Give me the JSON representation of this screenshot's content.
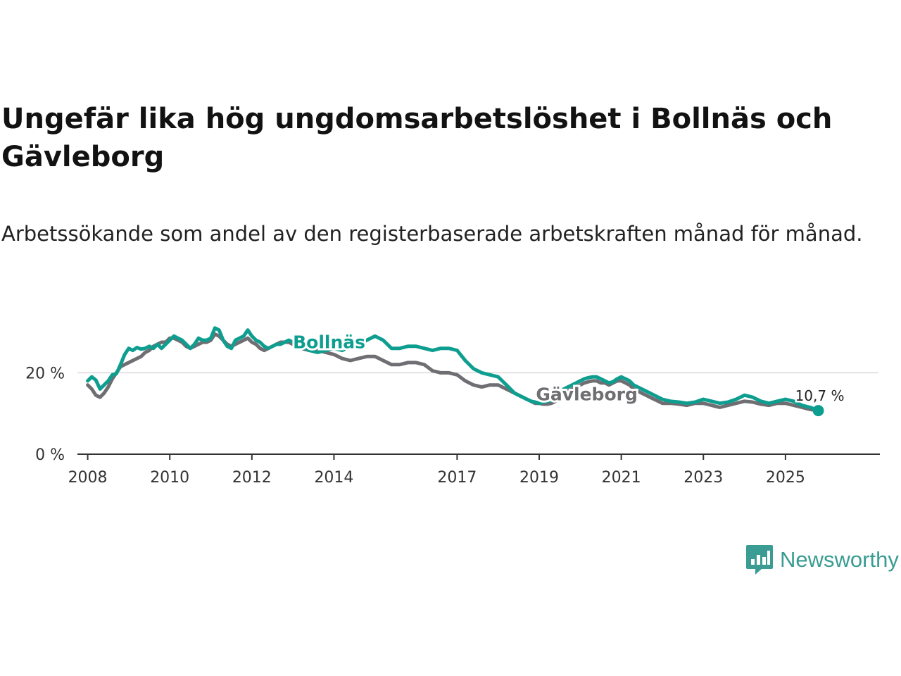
{
  "title": "Ungefär lika hög ungdomsarbetslöshet i Bollnäs och Gävleborg",
  "subtitle": "Arbetssökande som andel av den registerbaserade arbetskraften månad för månad.",
  "brand": {
    "name": "Newsworthy",
    "color": "#3a9c92"
  },
  "chart_data": {
    "type": "line",
    "title": "Ungefär lika hög ungdomsarbetslöshet i Bollnäs och Gävleborg",
    "xlabel": "",
    "ylabel": "",
    "xlim": [
      2007.75,
      2027.3
    ],
    "ylim": [
      0,
      32
    ],
    "x_ticks": [
      2008,
      2010,
      2012,
      2014,
      2017,
      2019,
      2021,
      2023,
      2025
    ],
    "y_ticks": [
      {
        "value": 0,
        "label": "0 %"
      },
      {
        "value": 20,
        "label": "20 %"
      }
    ],
    "grid": "horizontal",
    "end_label": "10,7 %",
    "series": [
      {
        "name": "Bollnäs",
        "color": "#0e9e8f",
        "x": [
          2008.0,
          2008.1,
          2008.2,
          2008.3,
          2008.4,
          2008.5,
          2008.6,
          2008.7,
          2008.8,
          2008.9,
          2009.0,
          2009.1,
          2009.2,
          2009.3,
          2009.4,
          2009.5,
          2009.6,
          2009.7,
          2009.8,
          2009.9,
          2010.0,
          2010.1,
          2010.2,
          2010.3,
          2010.4,
          2010.5,
          2010.6,
          2010.7,
          2010.8,
          2010.9,
          2011.0,
          2011.1,
          2011.2,
          2011.3,
          2011.4,
          2011.5,
          2011.6,
          2011.7,
          2011.8,
          2011.9,
          2012.0,
          2012.1,
          2012.2,
          2012.3,
          2012.4,
          2012.5,
          2012.6,
          2012.7,
          2012.8,
          2012.9,
          2013.0,
          2013.2,
          2013.4,
          2013.6,
          2013.8,
          2014.0,
          2014.2,
          2014.4,
          2014.6,
          2014.8,
          2015.0,
          2015.2,
          2015.4,
          2015.6,
          2015.8,
          2016.0,
          2016.2,
          2016.4,
          2016.6,
          2016.8,
          2017.0,
          2017.2,
          2017.4,
          2017.6,
          2017.8,
          2018.0,
          2018.1,
          2018.2,
          2018.3,
          2018.4,
          2018.5,
          2018.6,
          2018.7,
          2018.8,
          2018.9,
          2019.0,
          2019.1,
          2019.2,
          2019.3,
          2019.4,
          2019.5,
          2019.6,
          2019.7,
          2019.8,
          2019.9,
          2020.0,
          2020.1,
          2020.2,
          2020.3,
          2020.4,
          2020.5,
          2020.6,
          2020.7,
          2020.8,
          2020.9,
          2021.0,
          2021.1,
          2021.2,
          2021.3,
          2021.4,
          2021.5,
          2021.6,
          2021.7,
          2021.8,
          2021.9,
          2022.0,
          2022.2,
          2022.4,
          2022.6,
          2022.8,
          2023.0,
          2023.2,
          2023.4,
          2023.6,
          2023.8,
          2024.0,
          2024.2,
          2024.4,
          2024.6,
          2024.8,
          2025.0,
          2025.2,
          2025.4,
          2025.6,
          2025.8
        ],
        "values": [
          18.0,
          19.0,
          18.2,
          16.0,
          17.0,
          18.0,
          19.5,
          19.8,
          22.0,
          24.5,
          26.0,
          25.5,
          26.2,
          25.8,
          26.0,
          26.5,
          26.0,
          27.0,
          26.0,
          27.0,
          28.0,
          29.0,
          28.5,
          28.0,
          27.0,
          26.0,
          27.0,
          28.5,
          28.0,
          28.0,
          28.5,
          31.0,
          30.5,
          28.0,
          26.5,
          26.0,
          28.0,
          28.5,
          29.0,
          30.5,
          29.0,
          28.0,
          27.5,
          26.5,
          26.0,
          26.5,
          27.0,
          27.0,
          27.5,
          28.0,
          27.5,
          26.5,
          25.5,
          25.0,
          25.5,
          26.0,
          25.5,
          26.5,
          27.0,
          28.0,
          29.0,
          28.0,
          26.0,
          26.0,
          26.5,
          26.5,
          26.0,
          25.5,
          26.0,
          26.0,
          25.5,
          23.0,
          21.0,
          20.0,
          19.5,
          19.0,
          18.0,
          17.0,
          16.0,
          15.0,
          14.5,
          14.0,
          13.5,
          13.0,
          12.8,
          12.5,
          12.8,
          13.0,
          13.2,
          14.0,
          15.0,
          16.0,
          16.5,
          17.0,
          17.5,
          18.0,
          18.5,
          18.8,
          19.0,
          19.0,
          18.5,
          18.0,
          17.5,
          17.8,
          18.5,
          19.0,
          18.5,
          18.0,
          17.0,
          16.5,
          16.0,
          15.5,
          15.0,
          14.5,
          14.0,
          13.5,
          13.0,
          12.8,
          12.5,
          12.8,
          13.5,
          13.0,
          12.5,
          12.8,
          13.5,
          14.5,
          14.0,
          13.0,
          12.5,
          13.0,
          13.5,
          13.0,
          12.0,
          11.5,
          10.7
        ]
      },
      {
        "name": "Gävleborg",
        "color": "#6e6e73",
        "x": [
          2008.0,
          2008.1,
          2008.2,
          2008.3,
          2008.4,
          2008.5,
          2008.6,
          2008.7,
          2008.8,
          2008.9,
          2009.0,
          2009.1,
          2009.2,
          2009.3,
          2009.4,
          2009.5,
          2009.6,
          2009.7,
          2009.8,
          2009.9,
          2010.0,
          2010.1,
          2010.2,
          2010.3,
          2010.4,
          2010.5,
          2010.6,
          2010.7,
          2010.8,
          2010.9,
          2011.0,
          2011.1,
          2011.2,
          2011.3,
          2011.4,
          2011.5,
          2011.6,
          2011.7,
          2011.8,
          2011.9,
          2012.0,
          2012.1,
          2012.2,
          2012.3,
          2012.4,
          2012.5,
          2012.6,
          2012.7,
          2012.8,
          2012.9,
          2013.0,
          2013.2,
          2013.4,
          2013.6,
          2013.8,
          2014.0,
          2014.2,
          2014.4,
          2014.6,
          2014.8,
          2015.0,
          2015.2,
          2015.4,
          2015.6,
          2015.8,
          2016.0,
          2016.2,
          2016.4,
          2016.6,
          2016.8,
          2017.0,
          2017.2,
          2017.4,
          2017.6,
          2017.8,
          2018.0,
          2018.1,
          2018.2,
          2018.3,
          2018.4,
          2018.5,
          2018.6,
          2018.7,
          2018.8,
          2018.9,
          2019.0,
          2019.1,
          2019.2,
          2019.3,
          2019.4,
          2019.5,
          2019.6,
          2019.7,
          2019.8,
          2019.9,
          2020.0,
          2020.1,
          2020.2,
          2020.3,
          2020.4,
          2020.5,
          2020.6,
          2020.7,
          2020.8,
          2020.9,
          2021.0,
          2021.1,
          2021.2,
          2021.3,
          2021.4,
          2021.5,
          2021.6,
          2021.7,
          2021.8,
          2021.9,
          2022.0,
          2022.2,
          2022.4,
          2022.6,
          2022.8,
          2023.0,
          2023.2,
          2023.4,
          2023.6,
          2023.8,
          2024.0,
          2024.2,
          2024.4,
          2024.6,
          2024.8,
          2025.0,
          2025.2,
          2025.4,
          2025.6,
          2025.8
        ],
        "values": [
          17.0,
          16.0,
          14.5,
          14.0,
          15.0,
          16.5,
          18.5,
          20.0,
          21.5,
          22.0,
          22.5,
          23.0,
          23.5,
          24.0,
          25.0,
          25.5,
          26.5,
          27.0,
          27.5,
          27.5,
          28.5,
          28.5,
          28.0,
          27.5,
          26.5,
          26.0,
          26.5,
          27.0,
          27.5,
          27.5,
          28.0,
          29.5,
          29.0,
          28.0,
          27.0,
          26.5,
          27.0,
          27.5,
          28.0,
          28.5,
          27.5,
          27.0,
          26.0,
          25.5,
          26.0,
          26.5,
          27.0,
          27.5,
          27.5,
          27.5,
          27.0,
          26.0,
          25.5,
          25.5,
          25.0,
          24.5,
          23.5,
          23.0,
          23.5,
          24.0,
          24.0,
          23.0,
          22.0,
          22.0,
          22.5,
          22.5,
          22.0,
          20.5,
          20.0,
          20.0,
          19.5,
          18.0,
          17.0,
          16.5,
          17.0,
          17.0,
          16.5,
          16.0,
          15.5,
          15.0,
          14.5,
          14.0,
          13.5,
          13.0,
          12.5,
          12.5,
          12.3,
          12.3,
          12.5,
          13.0,
          14.0,
          15.0,
          15.5,
          16.0,
          16.5,
          17.0,
          17.5,
          17.8,
          18.0,
          18.0,
          17.5,
          17.5,
          17.0,
          17.5,
          18.0,
          18.0,
          17.5,
          17.0,
          16.0,
          15.5,
          15.0,
          14.5,
          14.0,
          13.5,
          13.0,
          12.5,
          12.5,
          12.3,
          12.0,
          12.5,
          12.5,
          12.0,
          11.5,
          12.0,
          12.5,
          13.0,
          12.8,
          12.3,
          12.0,
          12.5,
          12.5,
          12.0,
          11.5,
          11.0,
          10.7
        ]
      }
    ]
  }
}
